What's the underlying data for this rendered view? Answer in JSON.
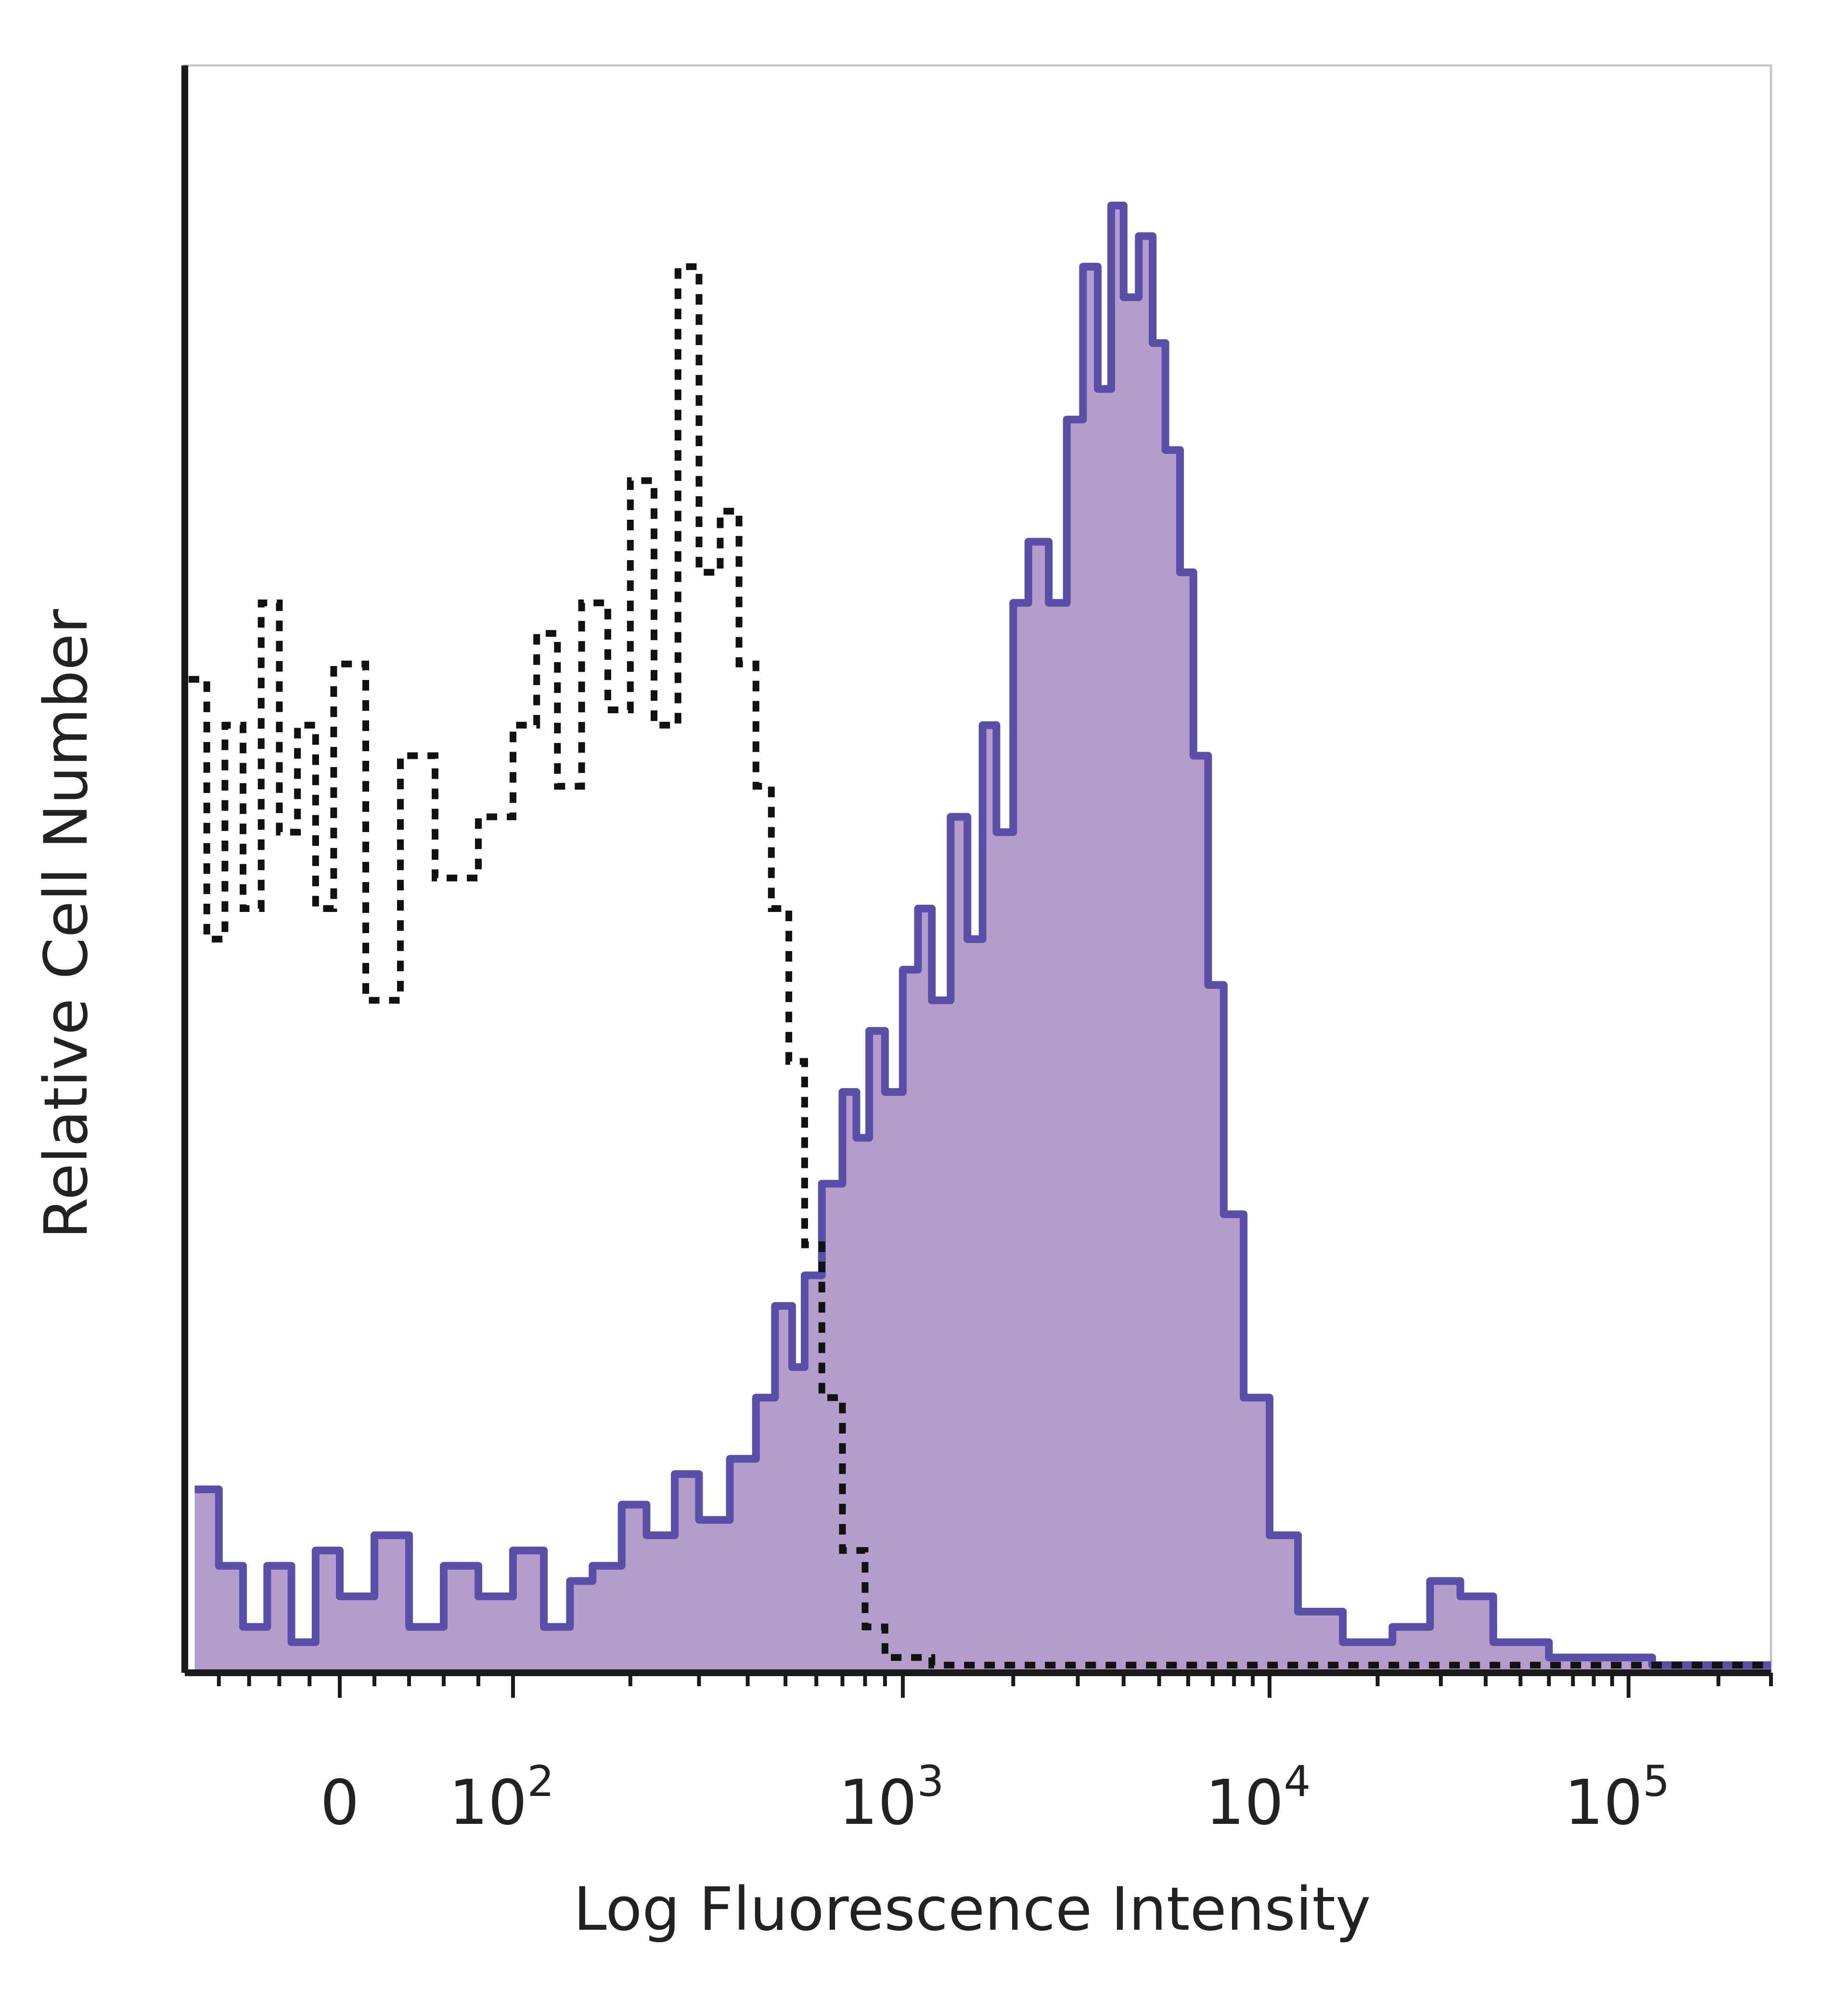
{
  "chart_data": {
    "type": "area",
    "title": "",
    "xlabel": "Log Fluorescence Intensity",
    "ylabel": "Relative Cell Number",
    "x_scale": "biexponential",
    "xlim": [
      -250,
      300000
    ],
    "ylim": [
      0,
      100
    ],
    "grid": false,
    "legend": "none",
    "xticks": [
      {
        "value": 0,
        "base": "0",
        "exp": ""
      },
      {
        "value": 100,
        "base": "10",
        "exp": "2"
      },
      {
        "value": 1000,
        "base": "10",
        "exp": "3"
      },
      {
        "value": 10000,
        "base": "10",
        "exp": "4"
      },
      {
        "value": 100000,
        "base": "10",
        "exp": "5"
      }
    ],
    "series": [
      {
        "style": "filled-outline",
        "color": "#5a4fa8",
        "fill": "#b49ccb",
        "points": [
          [
            -240,
            12
          ],
          [
            -200,
            7
          ],
          [
            -160,
            3
          ],
          [
            -120,
            7
          ],
          [
            -80,
            2
          ],
          [
            -40,
            8
          ],
          [
            0,
            5
          ],
          [
            20,
            9
          ],
          [
            40,
            3
          ],
          [
            60,
            7
          ],
          [
            80,
            5
          ],
          [
            100,
            8
          ],
          [
            120,
            3
          ],
          [
            140,
            6
          ],
          [
            160,
            7
          ],
          [
            190,
            11
          ],
          [
            220,
            9
          ],
          [
            260,
            13
          ],
          [
            300,
            10
          ],
          [
            360,
            14
          ],
          [
            420,
            18
          ],
          [
            470,
            24
          ],
          [
            520,
            20
          ],
          [
            560,
            26
          ],
          [
            620,
            32
          ],
          [
            700,
            38
          ],
          [
            760,
            35
          ],
          [
            820,
            42
          ],
          [
            900,
            38
          ],
          [
            1000,
            46
          ],
          [
            1100,
            50
          ],
          [
            1200,
            44
          ],
          [
            1350,
            56
          ],
          [
            1500,
            48
          ],
          [
            1650,
            62
          ],
          [
            1800,
            55
          ],
          [
            2000,
            70
          ],
          [
            2200,
            74
          ],
          [
            2500,
            70
          ],
          [
            2800,
            82
          ],
          [
            3100,
            92
          ],
          [
            3400,
            84
          ],
          [
            3700,
            96
          ],
          [
            4000,
            90
          ],
          [
            4400,
            94
          ],
          [
            4800,
            87
          ],
          [
            5200,
            80
          ],
          [
            5700,
            72
          ],
          [
            6200,
            60
          ],
          [
            6800,
            45
          ],
          [
            7500,
            30
          ],
          [
            8500,
            18
          ],
          [
            10000,
            9
          ],
          [
            12000,
            4
          ],
          [
            16000,
            2
          ],
          [
            22000,
            3
          ],
          [
            28000,
            6
          ],
          [
            34000,
            5
          ],
          [
            42000,
            2
          ],
          [
            60000,
            1
          ],
          [
            120000,
            0.5
          ],
          [
            300000,
            0.5
          ]
        ]
      },
      {
        "style": "dashed",
        "color": "#111111",
        "points": [
          [
            -250,
            65
          ],
          [
            -220,
            48
          ],
          [
            -190,
            62
          ],
          [
            -160,
            50
          ],
          [
            -130,
            70
          ],
          [
            -100,
            55
          ],
          [
            -70,
            62
          ],
          [
            -40,
            50
          ],
          [
            -10,
            66
          ],
          [
            15,
            44
          ],
          [
            35,
            60
          ],
          [
            55,
            52
          ],
          [
            80,
            56
          ],
          [
            100,
            62
          ],
          [
            115,
            68
          ],
          [
            130,
            58
          ],
          [
            150,
            70
          ],
          [
            175,
            63
          ],
          [
            200,
            78
          ],
          [
            230,
            62
          ],
          [
            265,
            92
          ],
          [
            300,
            72
          ],
          [
            340,
            76
          ],
          [
            380,
            66
          ],
          [
            420,
            58
          ],
          [
            460,
            50
          ],
          [
            510,
            40
          ],
          [
            560,
            28
          ],
          [
            620,
            18
          ],
          [
            700,
            8
          ],
          [
            800,
            3
          ],
          [
            900,
            1
          ],
          [
            1200,
            0.5
          ],
          [
            5000,
            0.5
          ],
          [
            300000,
            0.5
          ]
        ]
      }
    ]
  }
}
